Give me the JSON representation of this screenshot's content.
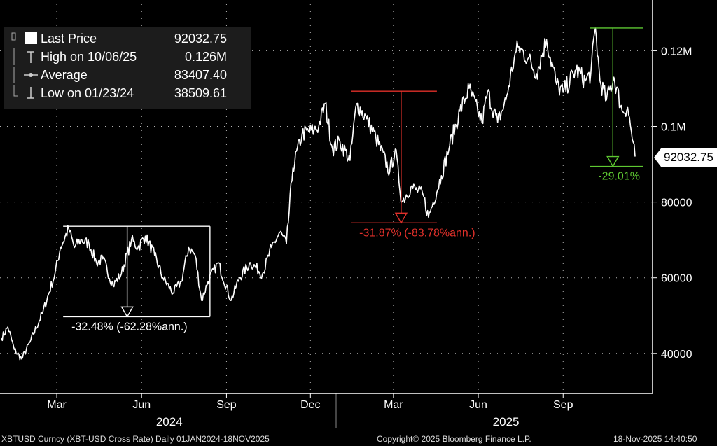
{
  "legend": {
    "rows": [
      {
        "label": "Last Price",
        "value": "92032.75",
        "icon": "square-icon"
      },
      {
        "label": "High on 10/06/25",
        "value": "0.126M",
        "icon": "high-marker-icon"
      },
      {
        "label": "Average",
        "value": "83407.40",
        "icon": "average-marker-icon"
      },
      {
        "label": "Low on 01/23/24",
        "value": "38509.61",
        "icon": "low-marker-icon"
      }
    ]
  },
  "last_price_tag": "92032.75",
  "footer": {
    "left": "XBTUSD Curncy (XBT-USD Cross Rate) Daily 01JAN2024-18NOV2025",
    "center": "Copyright© 2025 Bloomberg Finance L.P.",
    "right": "18-Nov-2025 14:40:50"
  },
  "colors": {
    "background": "#000000",
    "line": "#ffffff",
    "drawdown_2024": "#ffffff",
    "drawdown_2025_q1": "#e0302a",
    "drawdown_2025_q4": "#5ec832"
  },
  "chart_data": {
    "type": "line",
    "ylim": [
      30000,
      133000
    ],
    "y_ticks": [
      40000,
      60000,
      80000,
      100000,
      120000
    ],
    "y_tick_labels": [
      "40000",
      "60000",
      "80000",
      "0.1M",
      "0.12M"
    ],
    "x_ticks": [
      "Mar",
      "Jun",
      "Sep",
      "Dec",
      "Mar",
      "Jun",
      "Sep"
    ],
    "x_tick_dates": [
      "2024-03-01",
      "2024-06-01",
      "2024-09-01",
      "2024-12-01",
      "2025-03-01",
      "2025-06-01",
      "2025-09-01"
    ],
    "year_labels": [
      {
        "year": "2024",
        "date": "2024-07-01"
      },
      {
        "year": "2025",
        "date": "2025-07-01"
      }
    ],
    "series": [
      {
        "x": [
          "2024-01-01",
          "2024-01-08",
          "2024-01-15",
          "2024-01-23",
          "2024-02-01",
          "2024-02-15",
          "2024-02-28",
          "2024-03-05",
          "2024-03-14",
          "2024-03-20",
          "2024-03-27",
          "2024-04-05",
          "2024-04-13",
          "2024-04-20",
          "2024-05-01",
          "2024-05-10",
          "2024-05-21",
          "2024-05-28",
          "2024-06-05",
          "2024-06-15",
          "2024-06-24",
          "2024-07-05",
          "2024-07-14",
          "2024-07-22",
          "2024-07-29",
          "2024-08-05",
          "2024-08-12",
          "2024-08-23",
          "2024-09-06",
          "2024-09-15",
          "2024-09-27",
          "2024-10-10",
          "2024-10-20",
          "2024-10-29",
          "2024-11-05",
          "2024-11-12",
          "2024-11-22",
          "2024-12-05",
          "2024-12-10",
          "2024-12-17",
          "2024-12-25",
          "2025-01-02",
          "2025-01-13",
          "2025-01-20",
          "2025-01-31",
          "2025-02-10",
          "2025-02-25",
          "2025-03-03",
          "2025-03-10",
          "2025-03-20",
          "2025-04-02",
          "2025-04-08",
          "2025-04-22",
          "2025-05-01",
          "2025-05-12",
          "2025-05-22",
          "2025-06-05",
          "2025-06-11",
          "2025-06-22",
          "2025-07-01",
          "2025-07-10",
          "2025-07-14",
          "2025-07-25",
          "2025-08-03",
          "2025-08-14",
          "2025-08-25",
          "2025-09-01",
          "2025-09-15",
          "2025-09-25",
          "2025-10-01",
          "2025-10-06",
          "2025-10-11",
          "2025-10-18",
          "2025-10-26",
          "2025-11-04",
          "2025-11-10",
          "2025-11-18"
        ],
        "y": [
          44000,
          47000,
          41000,
          38510,
          43000,
          51000,
          61000,
          68000,
          73000,
          68000,
          70000,
          69000,
          64000,
          65000,
          58000,
          61000,
          70000,
          68000,
          71000,
          66000,
          60000,
          56000,
          59000,
          68000,
          66000,
          54000,
          59000,
          64000,
          54000,
          60000,
          64000,
          61000,
          68000,
          72000,
          69000,
          89000,
          98000,
          99000,
          100000,
          106000,
          94000,
          96000,
          91000,
          106000,
          102000,
          97000,
          88000,
          94000,
          80000,
          84000,
          82000,
          76000,
          87000,
          95000,
          104000,
          110000,
          101000,
          109000,
          101000,
          107000,
          118000,
          121000,
          118000,
          114000,
          123000,
          111000,
          109000,
          115000,
          112000,
          114000,
          126000,
          112000,
          107000,
          113000,
          104000,
          105000,
          92033
        ]
      }
    ],
    "annotations": [
      {
        "label": "-32.48% (-62.28%ann.)",
        "peak": 73600,
        "trough": 49700,
        "start": "2024-03-14",
        "end": "2024-08-05",
        "color": "#ffffff"
      },
      {
        "label": "-31.87% (-83.78%ann.)",
        "peak": 109300,
        "trough": 74500,
        "start": "2025-01-20",
        "end": "2025-04-08",
        "color": "#e0302a"
      },
      {
        "label": "-29.01%",
        "peak": 126000,
        "trough": 89450,
        "start": "2025-10-06",
        "end": "2025-11-18",
        "color": "#5ec832"
      }
    ]
  }
}
